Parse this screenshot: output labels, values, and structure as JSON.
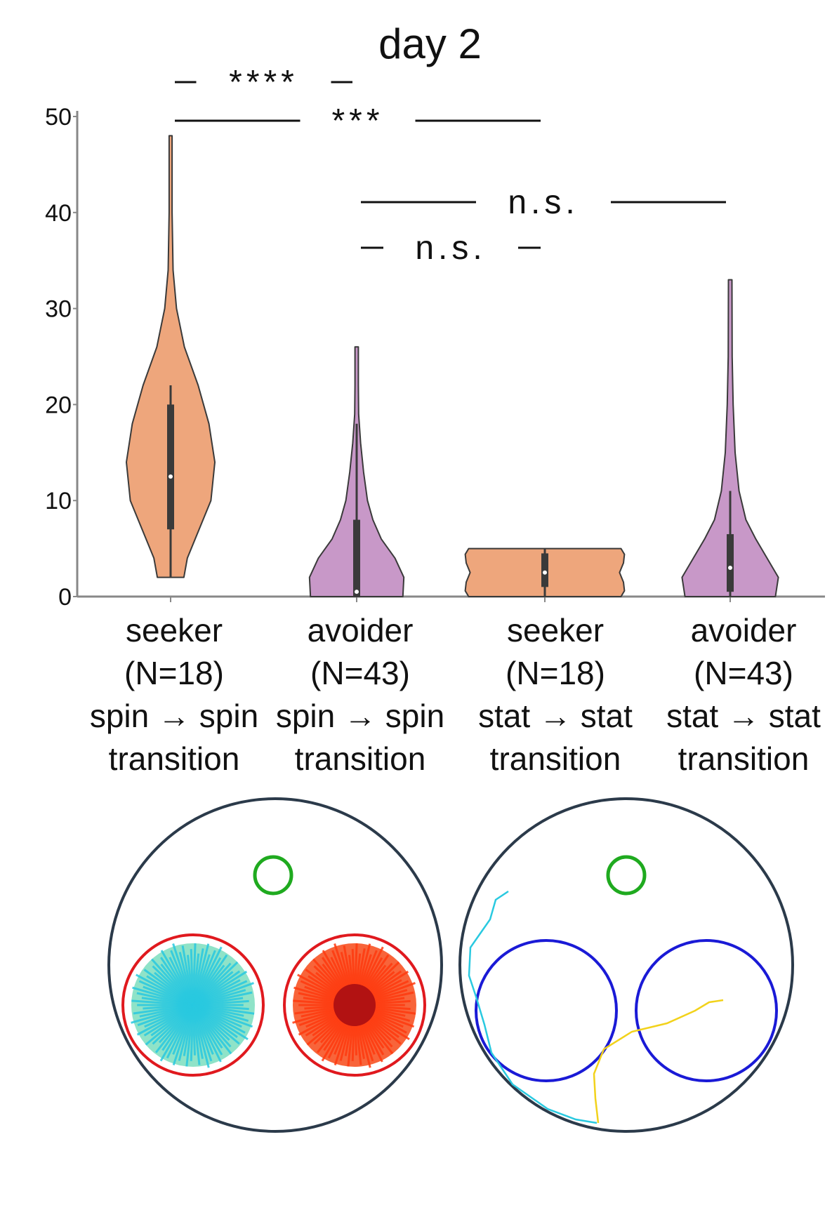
{
  "chart_data": {
    "type": "violin",
    "title": "day 2",
    "xlabel": "",
    "ylabel": "",
    "ylim": [
      0,
      50
    ],
    "yticks": [
      0,
      10,
      20,
      30,
      40,
      50
    ],
    "ytick_labels": [
      "0",
      "10",
      "20",
      "30",
      "40",
      "50"
    ],
    "grid": false,
    "categories": [
      {
        "line1": "seeker",
        "line2": "(N=18)",
        "line3": "spin → spin",
        "line4": "transition"
      },
      {
        "line1": "avoider",
        "line2": "(N=43)",
        "line3": "spin → spin",
        "line4": "transition"
      },
      {
        "line1": "seeker",
        "line2": "(N=18)",
        "line3": "stat → stat",
        "line4": "transition"
      },
      {
        "line1": "avoider",
        "line2": "(N=43)",
        "line3": "stat → stat",
        "line4": "transition"
      }
    ],
    "violins": [
      {
        "color": "#eea67c",
        "min": 2,
        "max": 48,
        "q1": 7,
        "median": 12.5,
        "q3": 20,
        "whisker_low": 2,
        "whisker_high": 22,
        "profile": [
          [
            2,
            0.27
          ],
          [
            4,
            0.34
          ],
          [
            7,
            0.58
          ],
          [
            10,
            0.82
          ],
          [
            14,
            0.9
          ],
          [
            18,
            0.78
          ],
          [
            22,
            0.56
          ],
          [
            26,
            0.28
          ],
          [
            30,
            0.12
          ],
          [
            34,
            0.05
          ],
          [
            40,
            0.03
          ],
          [
            48,
            0.03
          ]
        ]
      },
      {
        "color": "#c898c8",
        "min": 0,
        "max": 26,
        "q1": 0,
        "median": 0.5,
        "q3": 8,
        "whisker_low": 0,
        "whisker_high": 18,
        "profile": [
          [
            0,
            0.94
          ],
          [
            2,
            0.96
          ],
          [
            4,
            0.78
          ],
          [
            6,
            0.5
          ],
          [
            8,
            0.33
          ],
          [
            10,
            0.22
          ],
          [
            13,
            0.14
          ],
          [
            16,
            0.08
          ],
          [
            19,
            0.04
          ],
          [
            22,
            0.035
          ],
          [
            26,
            0.035
          ]
        ]
      },
      {
        "color": "#eea67c",
        "min": 0,
        "max": 5,
        "q1": 1,
        "median": 2.5,
        "q3": 4.5,
        "whisker_low": 0,
        "whisker_high": 5,
        "profile": [
          [
            0,
            1.55
          ],
          [
            0.6,
            1.62
          ],
          [
            1.5,
            1.6
          ],
          [
            2.5,
            1.52
          ],
          [
            3.5,
            1.6
          ],
          [
            4.4,
            1.62
          ],
          [
            5,
            1.55
          ]
        ]
      },
      {
        "color": "#c898c8",
        "min": 0,
        "max": 33,
        "q1": 0.5,
        "median": 3,
        "q3": 6.5,
        "whisker_low": 0,
        "whisker_high": 11,
        "profile": [
          [
            0,
            0.92
          ],
          [
            2,
            0.98
          ],
          [
            4,
            0.75
          ],
          [
            6,
            0.52
          ],
          [
            8,
            0.32
          ],
          [
            11,
            0.18
          ],
          [
            15,
            0.1
          ],
          [
            20,
            0.06
          ],
          [
            25,
            0.04
          ],
          [
            33,
            0.035
          ]
        ]
      }
    ],
    "significance": [
      {
        "label": "****",
        "from": 0,
        "to": 1,
        "level": "top"
      },
      {
        "label": "***",
        "from": 0,
        "to": 2,
        "level": "second"
      },
      {
        "label": "n.s.",
        "from": 1,
        "to": 3,
        "level": "third"
      },
      {
        "label": "n.s.",
        "from": 1,
        "to": 2,
        "level": "fourth"
      }
    ]
  },
  "panels": {
    "left_arena": {
      "ring_color": "#2b3a4a",
      "target_color": "#1faa1f",
      "zone_color": "#e0191e",
      "trail_cool": "#29c9e0",
      "trail_warm": "#ff3a0f"
    },
    "right_arena": {
      "ring_color": "#2b3a4a",
      "target_color": "#1faa1f",
      "zone_color": "#1a1ad6",
      "trail_cyan": "#29c9e0",
      "trail_yellow": "#f2d21b"
    }
  }
}
